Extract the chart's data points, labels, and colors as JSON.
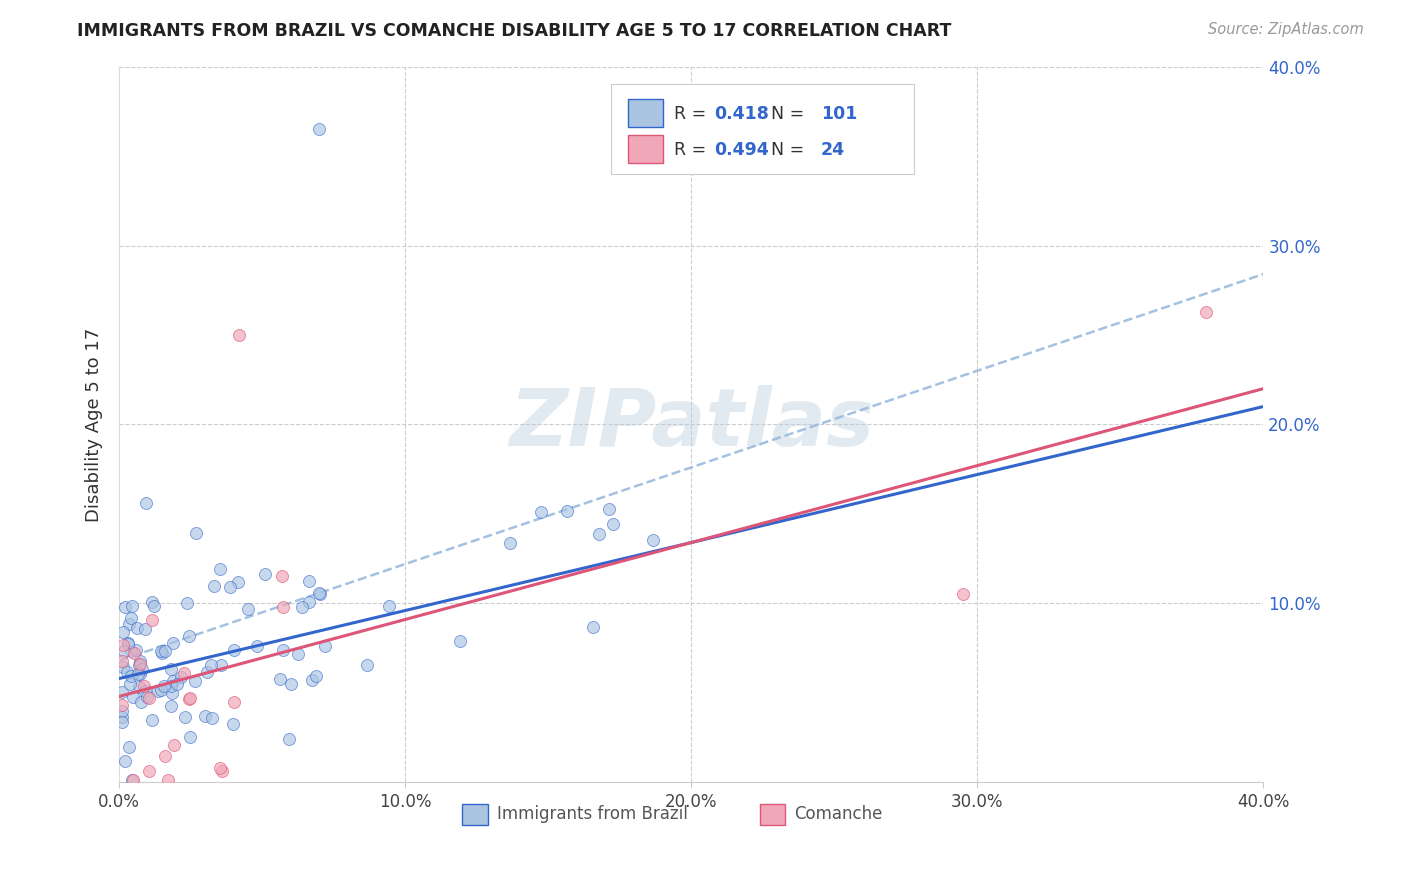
{
  "title": "IMMIGRANTS FROM BRAZIL VS COMANCHE DISABILITY AGE 5 TO 17 CORRELATION CHART",
  "source": "Source: ZipAtlas.com",
  "ylabel": "Disability Age 5 to 17",
  "xmin": 0.0,
  "xmax": 0.4,
  "ymin": 0.0,
  "ymax": 0.4,
  "brazil_R": 0.418,
  "brazil_N": 101,
  "comanche_R": 0.494,
  "comanche_N": 24,
  "brazil_color": "#aac4e2",
  "comanche_color": "#f0a8b8",
  "brazil_line_color": "#3366cc",
  "comanche_line_color": "#dd5577",
  "dashed_color": "#99bbdd",
  "brazil_intercept": 0.058,
  "brazil_slope": 0.38,
  "comanche_intercept": 0.048,
  "comanche_slope": 0.43,
  "dashed_intercept": 0.068,
  "dashed_slope": 0.54
}
